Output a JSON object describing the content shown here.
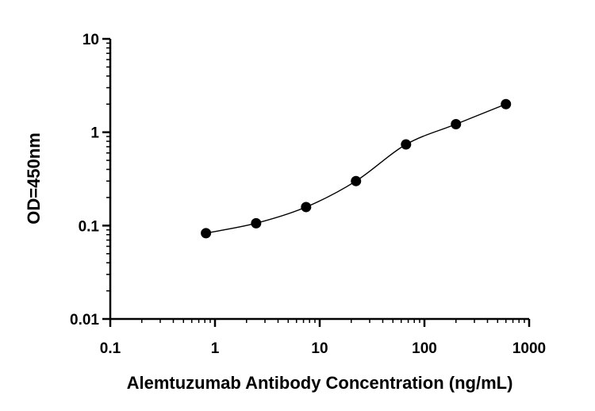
{
  "chart_data": {
    "type": "scatter",
    "title": "",
    "xlabel": "Alemtuzumab Antibody Concentration (ng/mL)",
    "ylabel": "OD=450nm",
    "x_scale": "log",
    "y_scale": "log",
    "xlim": [
      0.1,
      1000
    ],
    "ylim": [
      0.01,
      10
    ],
    "x_ticks": [
      0.1,
      1,
      10,
      100,
      1000
    ],
    "x_tick_labels": [
      "0.1",
      "1",
      "10",
      "100",
      "1000"
    ],
    "y_ticks": [
      0.01,
      0.1,
      1,
      10
    ],
    "y_tick_labels": [
      "0.01",
      "0.1",
      "1",
      "10"
    ],
    "grid": false,
    "legend": "none",
    "fit_curve": "sigmoidal",
    "series": [
      {
        "x": [
          0.82,
          2.47,
          7.41,
          22.2,
          66.7,
          200,
          600
        ],
        "y": [
          0.083,
          0.106,
          0.158,
          0.3,
          0.74,
          1.22,
          2.0
        ]
      }
    ],
    "colors": {
      "marker": "#000000",
      "curve": "#000000",
      "axis": "#000000"
    }
  }
}
